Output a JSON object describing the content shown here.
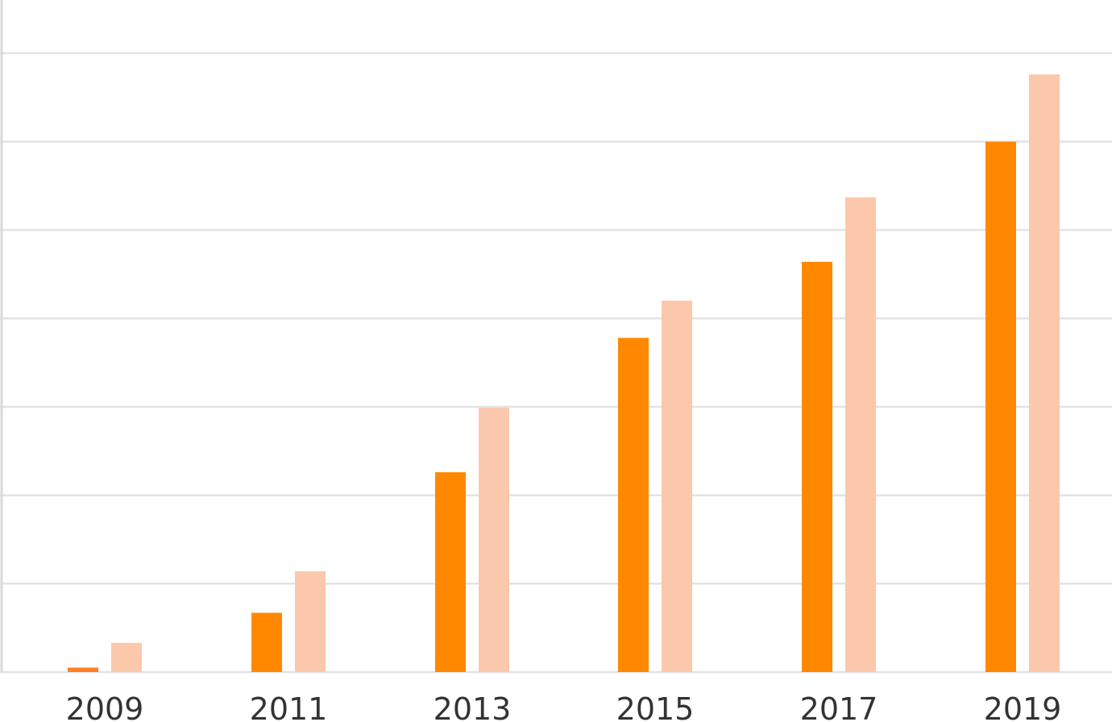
{
  "chart_data": {
    "type": "bar",
    "categories": [
      "2009",
      "2011",
      "2013",
      "2015",
      "2017",
      "2019"
    ],
    "series": [
      {
        "values": [
          0.5,
          6.7,
          22.6,
          37.8,
          46.4,
          60.0
        ]
      },
      {
        "values": [
          3.3,
          11.4,
          29.9,
          42.0,
          53.7,
          67.6
        ]
      }
    ],
    "ylim": [
      0,
      70
    ],
    "grid": true,
    "legend": "none",
    "colors": {
      "series_first_point": "#ff7f27",
      "series": [
        "#ff8800",
        "#fcc8ab"
      ],
      "grid": "#e3e3e3",
      "text": "#333333"
    }
  }
}
